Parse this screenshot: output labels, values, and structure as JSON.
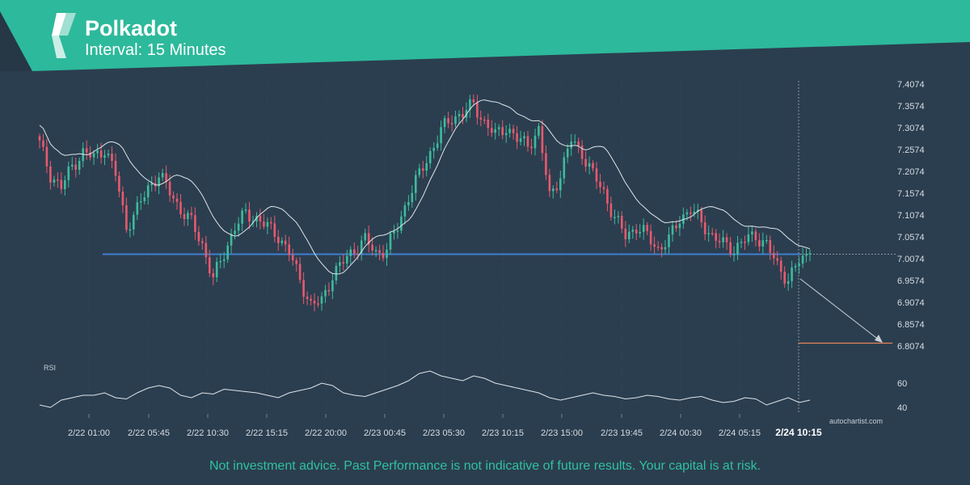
{
  "header": {
    "title": "Polkadot",
    "subtitle": "Interval: 15 Minutes"
  },
  "chart_data": {
    "type": "candlestick",
    "instrument": "Polkadot",
    "interval": "15 Minutes",
    "ylim": [
      6.78,
      7.42
    ],
    "y_ticks": [
      "7.4074",
      "7.3574",
      "7.3074",
      "7.2574",
      "7.2074",
      "7.1574",
      "7.1074",
      "7.0574",
      "7.0074",
      "6.9574",
      "6.9074",
      "6.8574",
      "6.8074"
    ],
    "x_ticks": [
      "2/22 01:00",
      "2/22 05:45",
      "2/22 10:30",
      "2/22 15:15",
      "2/22 20:00",
      "2/23 00:45",
      "2/23 05:30",
      "2/23 10:15",
      "2/23 15:00",
      "2/23 19:45",
      "2/24 00:30",
      "2/24 05:15"
    ],
    "current_time_label": "2/24 10:15",
    "close_series_approx": [
      7.27,
      7.2,
      7.17,
      7.22,
      7.25,
      7.24,
      7.26,
      7.2,
      7.08,
      7.12,
      7.17,
      7.2,
      7.16,
      7.12,
      7.09,
      7.04,
      6.96,
      7.02,
      7.08,
      7.11,
      7.1,
      7.08,
      7.06,
      7.02,
      6.96,
      6.9,
      6.91,
      6.97,
      7.0,
      7.03,
      7.05,
      7.02,
      7.03,
      7.08,
      7.15,
      7.2,
      7.25,
      7.3,
      7.33,
      7.34,
      7.36,
      7.32,
      7.29,
      7.31,
      7.28,
      7.27,
      7.3,
      7.15,
      7.2,
      7.28,
      7.25,
      7.2,
      7.16,
      7.1,
      7.06,
      7.08,
      7.06,
      7.03,
      7.05,
      7.1,
      7.12,
      7.09,
      7.06,
      7.04,
      7.03,
      7.05,
      7.06,
      7.04,
      6.99,
      6.96,
      7.0,
      7.02
    ],
    "support_level": 7.017,
    "target_level": 6.807,
    "projection": {
      "from": 6.95,
      "to": 6.81
    },
    "rsi": {
      "label": "RSI",
      "ticks": [
        "60",
        "40"
      ],
      "ylim": [
        30,
        80
      ],
      "values": [
        42,
        40,
        46,
        48,
        50,
        50,
        52,
        48,
        47,
        52,
        56,
        58,
        56,
        50,
        48,
        52,
        51,
        55,
        54,
        53,
        52,
        50,
        48,
        52,
        54,
        56,
        60,
        58,
        52,
        50,
        49,
        52,
        55,
        58,
        62,
        68,
        70,
        66,
        64,
        62,
        66,
        64,
        60,
        58,
        56,
        54,
        52,
        48,
        46,
        48,
        50,
        52,
        50,
        49,
        47,
        48,
        50,
        49,
        47,
        46,
        48,
        49,
        46,
        44,
        45,
        48,
        47,
        42,
        45,
        48,
        44,
        46
      ]
    },
    "watermark": "autochartist.com"
  },
  "footer": {
    "disclaimer": "Not investment advice. Past Performance is not indicative of future results. Your capital is at risk."
  },
  "colors": {
    "background": "#2b3e4f",
    "header": "#2db99b",
    "up_candle": "#3dbb9d",
    "down_candle": "#e9596e",
    "moving_average": "#dfe5ea",
    "support_line": "#3f7fcf",
    "target_line": "#e8855a",
    "disclaimer": "#2fc1a0"
  }
}
